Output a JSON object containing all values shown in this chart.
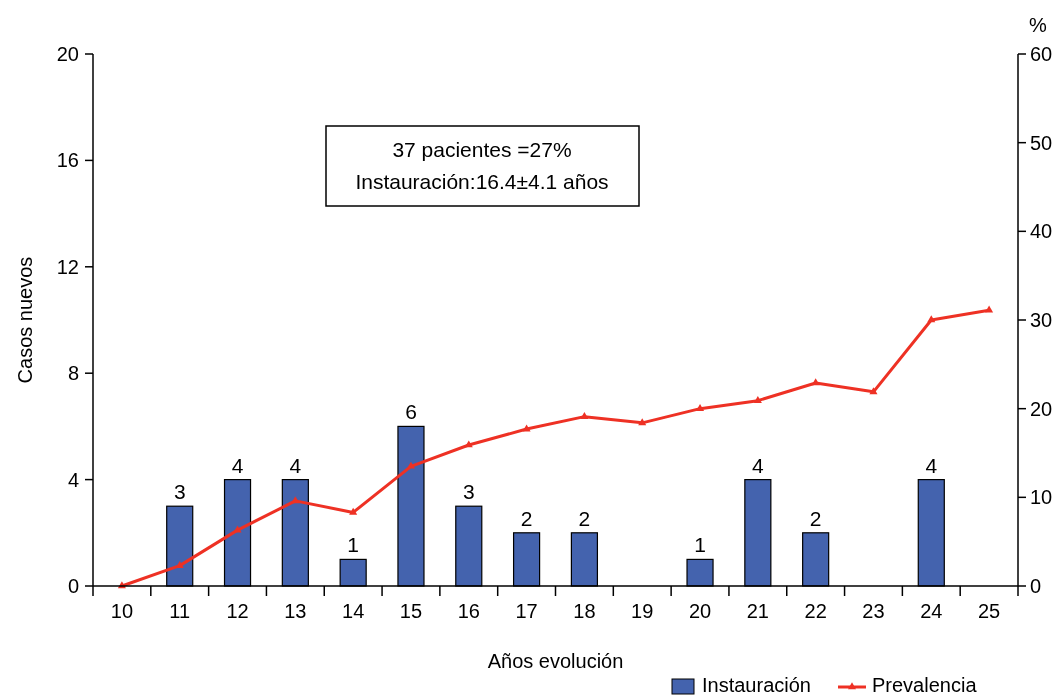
{
  "chart_data": {
    "type": "bar",
    "xlabel": "Años evolución",
    "ylabel": "Casos nuevos",
    "y2label": "%",
    "categories": [
      "10",
      "11",
      "12",
      "13",
      "14",
      "15",
      "16",
      "17",
      "18",
      "19",
      "20",
      "21",
      "22",
      "23",
      "24",
      "25"
    ],
    "series": [
      {
        "name": "Instauración",
        "color": "#4463ae",
        "values": [
          null,
          3,
          4,
          4,
          1,
          6,
          3,
          2,
          2,
          null,
          1,
          4,
          2,
          null,
          4,
          null
        ],
        "value_labels": [
          null,
          "3",
          "4",
          "4",
          "1",
          "6",
          "3",
          "2",
          "2",
          null,
          "1",
          "4",
          "2",
          null,
          "4",
          null
        ]
      },
      {
        "name": "Prevalencia",
        "type": "line",
        "axis": "y2",
        "color": "#ee3124",
        "marker": "triangle",
        "values": [
          0,
          2.3,
          6.3,
          9.6,
          8.3,
          13.5,
          15.9,
          17.7,
          19.1,
          18.4,
          20,
          20.9,
          22.9,
          21.9,
          30,
          31.1
        ]
      }
    ],
    "ylim": [
      0,
      20
    ],
    "yticks": [
      0,
      4,
      8,
      12,
      16,
      20
    ],
    "y2lim": [
      0,
      60
    ],
    "y2ticks": [
      0,
      10,
      20,
      30,
      40,
      50,
      60
    ],
    "annotations": [
      "37 pacientes =27%",
      "Instauración:16.4±4.1 años"
    ],
    "legend": "bottom right",
    "grid": false
  }
}
